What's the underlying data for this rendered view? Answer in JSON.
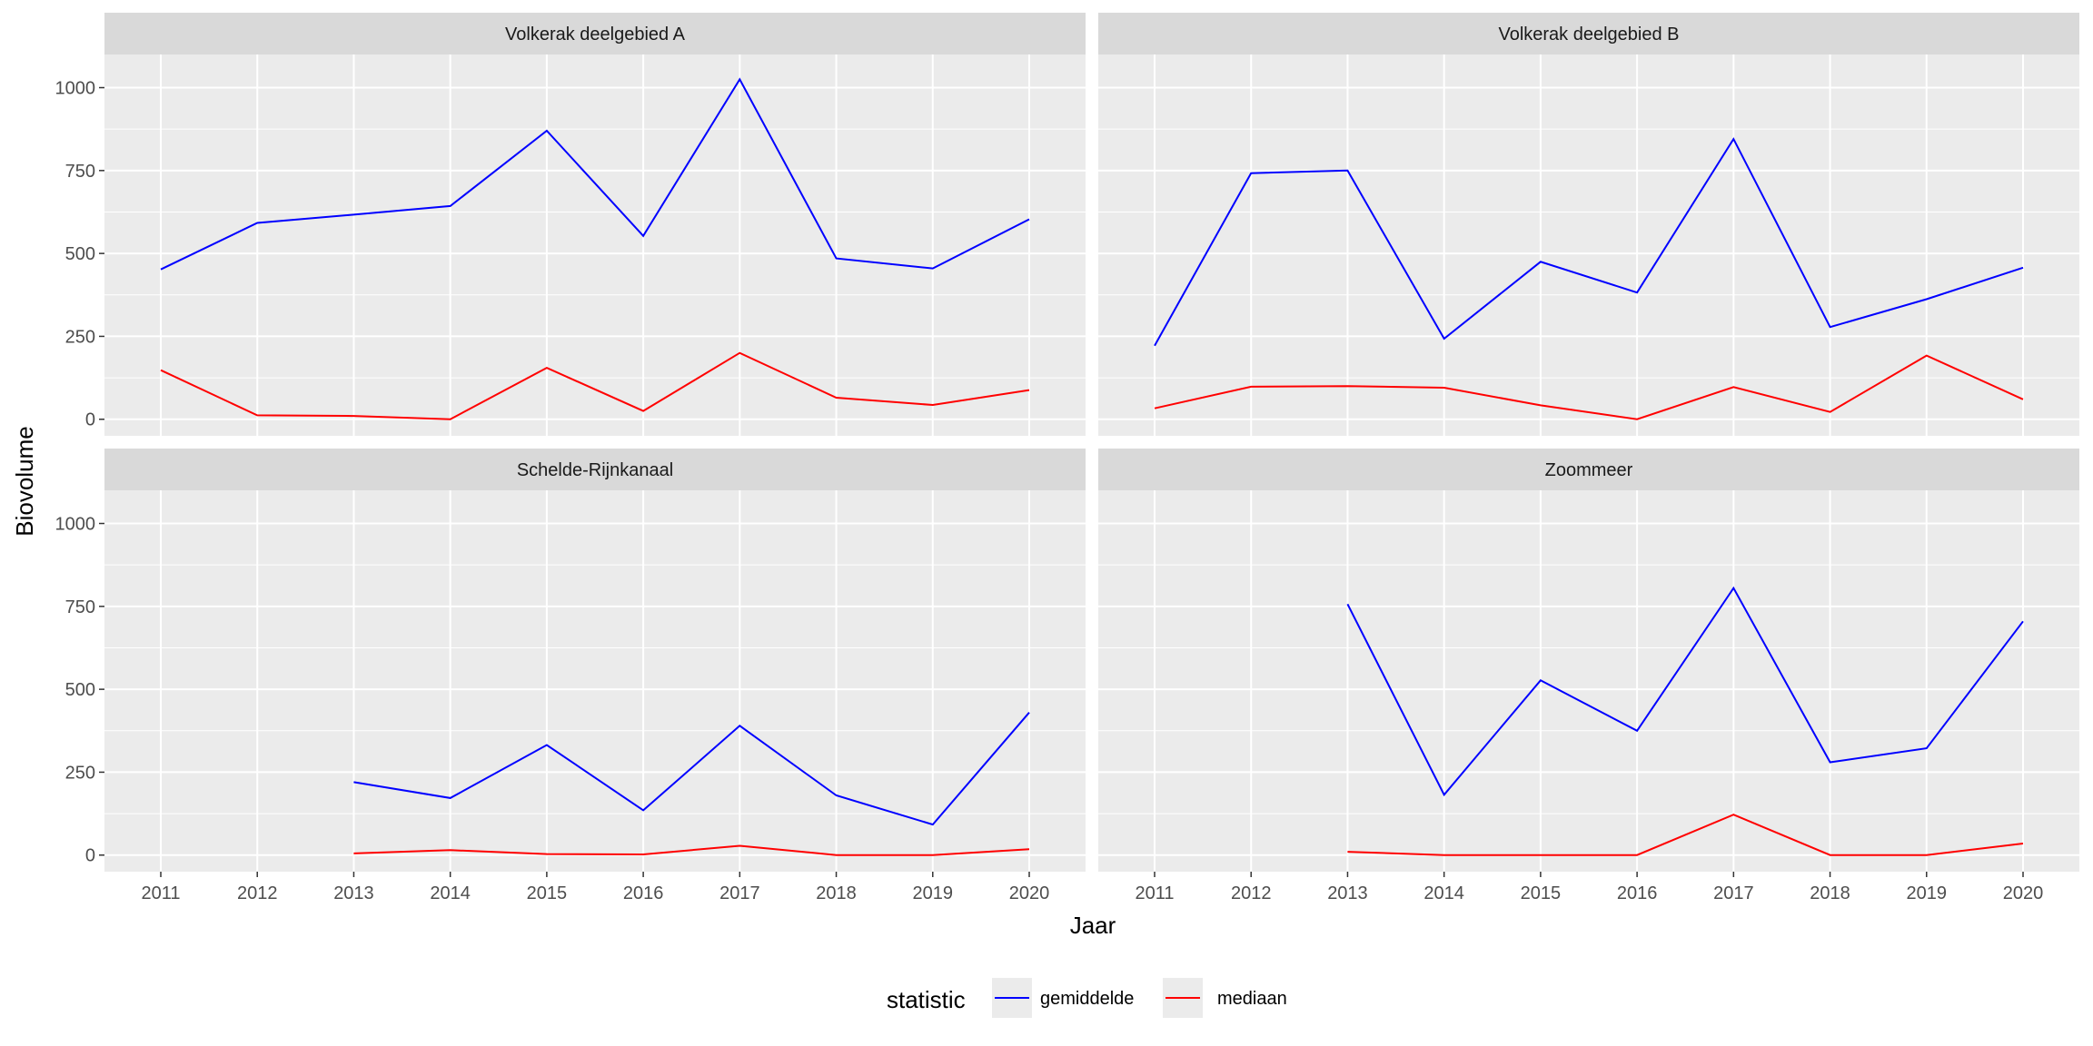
{
  "chart_data": {
    "type": "line",
    "xlabel": "Jaar",
    "ylabel": "Biovolume",
    "x": [
      2011,
      2012,
      2013,
      2014,
      2015,
      2016,
      2017,
      2018,
      2019,
      2020
    ],
    "ylim": [
      -50,
      1100
    ],
    "yticks": [
      0,
      250,
      500,
      750,
      1000
    ],
    "grid": true,
    "legend": {
      "title": "statistic",
      "position": "bottom",
      "entries": [
        {
          "label": "gemiddelde",
          "color": "#0000ff"
        },
        {
          "label": "mediaan",
          "color": "#ff0000"
        }
      ]
    },
    "panels": [
      {
        "title": "Volkerak deelgebied A",
        "series": [
          {
            "name": "gemiddelde",
            "color": "#0000ff",
            "values": [
              452,
              592,
              617,
              643,
              870,
              553,
              1025,
              485,
              455,
              603
            ]
          },
          {
            "name": "mediaan",
            "color": "#ff0000",
            "values": [
              148,
              12,
              10,
              0,
              155,
              25,
              200,
              65,
              43,
              88
            ]
          }
        ]
      },
      {
        "title": "Volkerak deelgebied B",
        "series": [
          {
            "name": "gemiddelde",
            "color": "#0000ff",
            "values": [
              222,
              742,
              750,
              243,
              475,
              382,
              845,
              278,
              362,
              457
            ]
          },
          {
            "name": "mediaan",
            "color": "#ff0000",
            "values": [
              33,
              98,
              100,
              95,
              42,
              0,
              97,
              22,
              192,
              60
            ]
          }
        ]
      },
      {
        "title": "Schelde-Rijnkanaal",
        "series": [
          {
            "name": "gemiddelde",
            "color": "#0000ff",
            "values": [
              null,
              null,
              220,
              172,
              332,
              135,
              390,
              180,
              92,
              430
            ]
          },
          {
            "name": "mediaan",
            "color": "#ff0000",
            "values": [
              null,
              null,
              5,
              15,
              3,
              2,
              28,
              0,
              0,
              18
            ]
          }
        ]
      },
      {
        "title": "Zoommeer",
        "series": [
          {
            "name": "gemiddelde",
            "color": "#0000ff",
            "values": [
              null,
              null,
              757,
              182,
              527,
              375,
              805,
              280,
              322,
              705
            ]
          },
          {
            "name": "mediaan",
            "color": "#ff0000",
            "values": [
              null,
              null,
              10,
              0,
              0,
              0,
              122,
              0,
              0,
              35
            ]
          }
        ]
      }
    ]
  }
}
